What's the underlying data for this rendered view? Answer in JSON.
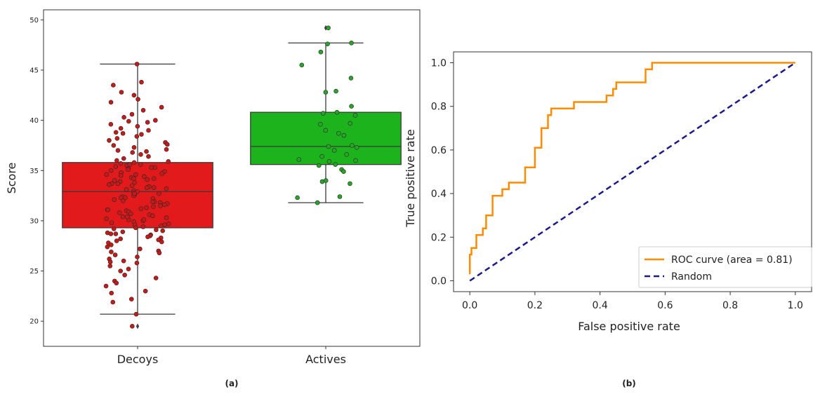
{
  "panel_a_label": "(a)",
  "panel_b_label": "(b)",
  "chart_data": [
    {
      "type": "box",
      "ylabel": "Score",
      "xlabel": "",
      "ylim": [
        17.5,
        51
      ],
      "yticks": [
        20,
        25,
        30,
        35,
        40,
        45,
        50
      ],
      "categories": [
        "Decoys",
        "Actives"
      ],
      "colors": {
        "Decoys": "#e31a1c",
        "Actives": "#1db31d",
        "points_Decoys": "#c81818",
        "points_Actives": "#27a527"
      },
      "boxes": [
        {
          "name": "Decoys",
          "whisker_low": 20.7,
          "q1": 29.3,
          "median": 32.9,
          "q3": 35.8,
          "whisker_high": 45.6,
          "outliers": [
            19.5
          ]
        },
        {
          "name": "Actives",
          "whisker_low": 31.8,
          "q1": 35.6,
          "median": 37.4,
          "q3": 40.8,
          "whisker_high": 47.7,
          "outliers": [
            49.2
          ]
        }
      ],
      "points": {
        "Decoys": [
          45.6,
          43.8,
          43.5,
          42.8,
          42.5,
          42.1,
          41.8,
          41.3,
          41.0,
          40.6,
          40.3,
          40.0,
          39.8,
          39.6,
          39.4,
          39.2,
          39.0,
          38.8,
          38.6,
          38.4,
          38.2,
          38.0,
          37.8,
          37.6,
          37.5,
          37.3,
          37.1,
          37.0,
          36.8,
          36.6,
          36.4,
          36.2,
          36.0,
          35.9,
          35.8,
          35.7,
          35.6,
          35.5,
          35.4,
          35.3,
          35.2,
          35.1,
          35.0,
          34.9,
          34.8,
          34.7,
          34.6,
          34.5,
          34.4,
          34.3,
          34.2,
          34.1,
          34.0,
          33.9,
          33.8,
          33.7,
          33.6,
          33.5,
          33.4,
          33.3,
          33.2,
          33.1,
          33.0,
          32.9,
          32.8,
          32.7,
          32.6,
          32.5,
          32.4,
          32.3,
          32.2,
          32.1,
          32.0,
          31.9,
          31.8,
          31.7,
          31.6,
          31.5,
          31.4,
          31.3,
          31.2,
          31.1,
          31.0,
          30.9,
          30.8,
          30.7,
          30.6,
          30.5,
          30.4,
          30.3,
          30.2,
          30.1,
          30.0,
          29.9,
          29.8,
          29.7,
          29.6,
          29.5,
          29.4,
          29.3,
          29.2,
          29.1,
          29.0,
          28.9,
          28.8,
          28.7,
          28.6,
          28.5,
          28.4,
          28.3,
          28.2,
          28.1,
          28.0,
          27.8,
          27.6,
          27.4,
          27.2,
          27.0,
          26.8,
          26.6,
          26.4,
          26.2,
          26.0,
          25.8,
          25.5,
          25.2,
          25.0,
          24.6,
          24.3,
          24.0,
          23.8,
          23.5,
          23.0,
          22.8,
          22.2,
          21.9,
          20.7,
          19.5,
          34.6,
          33.3,
          32.7,
          31.9,
          30.4,
          29.6,
          35.3,
          36.9,
          38.7,
          39.9,
          28.7,
          27.9,
          26.9,
          25.9,
          33.7,
          32.3,
          31.1,
          30.1,
          34.2,
          35.6
        ],
        "Actives": [
          49.2,
          47.7,
          47.6,
          46.8,
          45.5,
          44.2,
          42.9,
          42.8,
          41.4,
          40.8,
          40.7,
          40.5,
          39.7,
          39.6,
          39.0,
          38.7,
          38.5,
          37.5,
          37.4,
          37.3,
          37.0,
          36.6,
          36.4,
          36.1,
          36.0,
          35.9,
          35.6,
          35.5,
          35.1,
          34.9,
          34.0,
          33.9,
          33.7,
          32.4,
          32.3,
          31.8
        ]
      }
    },
    {
      "type": "line",
      "xlabel": "False positive rate",
      "ylabel": "True positive rate",
      "xlim": [
        -0.05,
        1.05
      ],
      "ylim": [
        -0.05,
        1.05
      ],
      "xticks": [
        "0.0",
        "0.2",
        "0.4",
        "0.6",
        "0.8",
        "1.0"
      ],
      "yticks": [
        "0.0",
        "0.2",
        "0.4",
        "0.6",
        "0.8",
        "1.0"
      ],
      "legend_position": "lower-right",
      "series": [
        {
          "name": "ROC curve (area = 0.81)",
          "color": "#ff8c00",
          "style": "solid",
          "x": [
            0.0,
            0.0,
            0.005,
            0.005,
            0.01,
            0.01,
            0.02,
            0.02,
            0.03,
            0.03,
            0.04,
            0.04,
            0.05,
            0.05,
            0.07,
            0.07,
            0.1,
            0.1,
            0.12,
            0.12,
            0.17,
            0.17,
            0.2,
            0.2,
            0.22,
            0.22,
            0.24,
            0.24,
            0.25,
            0.25,
            0.26,
            0.26,
            0.32,
            0.32,
            0.42,
            0.42,
            0.43,
            0.43,
            0.44,
            0.44,
            0.45,
            0.45,
            0.54,
            0.54,
            0.56,
            0.56,
            1.0
          ],
          "y": [
            0.03,
            0.12,
            0.12,
            0.15,
            0.15,
            0.15,
            0.15,
            0.21,
            0.21,
            0.21,
            0.21,
            0.24,
            0.24,
            0.3,
            0.3,
            0.39,
            0.39,
            0.42,
            0.42,
            0.45,
            0.45,
            0.52,
            0.52,
            0.61,
            0.61,
            0.7,
            0.7,
            0.76,
            0.76,
            0.79,
            0.79,
            0.79,
            0.79,
            0.82,
            0.82,
            0.85,
            0.85,
            0.85,
            0.85,
            0.88,
            0.88,
            0.91,
            0.91,
            0.97,
            0.97,
            1.0,
            1.0
          ]
        },
        {
          "name": "Random",
          "color": "#1a1a8c",
          "style": "dashed",
          "x": [
            0.0,
            1.0
          ],
          "y": [
            0.0,
            1.0
          ]
        }
      ]
    }
  ]
}
